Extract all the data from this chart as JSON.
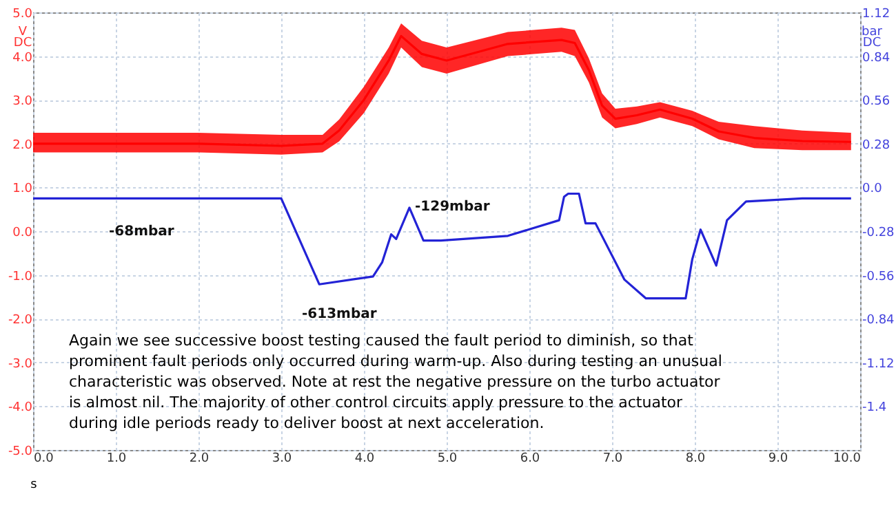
{
  "chart_data": {
    "type": "line",
    "xlabel": "s",
    "ylabel": "V DC",
    "y2label": "bar DC",
    "xlim": [
      0,
      10
    ],
    "ylim": [
      -5,
      5
    ],
    "y2lim": [
      -1.68,
      1.12
    ],
    "xticks": [
      {
        "value": 0,
        "label": "0.0"
      },
      {
        "value": 1,
        "label": "1.0"
      },
      {
        "value": 2,
        "label": "2.0"
      },
      {
        "value": 3,
        "label": "3.0"
      },
      {
        "value": 4,
        "label": "4.0"
      },
      {
        "value": 5,
        "label": "5.0"
      },
      {
        "value": 6,
        "label": "6.0"
      },
      {
        "value": 7,
        "label": "7.0"
      },
      {
        "value": 8,
        "label": "8.0"
      },
      {
        "value": 9,
        "label": "9.0"
      },
      {
        "value": 10,
        "label": "10.0"
      }
    ],
    "yticks": [
      {
        "value": -5,
        "label": "-5.0"
      },
      {
        "value": -4,
        "label": "-4.0"
      },
      {
        "value": -3,
        "label": "-3.0"
      },
      {
        "value": -2,
        "label": "-2.0"
      },
      {
        "value": -1,
        "label": "-1.0"
      },
      {
        "value": 0,
        "label": "0.0"
      },
      {
        "value": 1,
        "label": "1.0"
      },
      {
        "value": 2,
        "label": "2.0"
      },
      {
        "value": 3,
        "label": "3.0"
      },
      {
        "value": 4,
        "label": "4.0"
      },
      {
        "value": 5,
        "label": "5.0"
      }
    ],
    "y2ticks": [
      1.12,
      0.84,
      0.56,
      0.28,
      {
        "value": 0,
        "label": "0.0"
      },
      -0.28,
      -0.56,
      -0.84,
      -1.12,
      -1.4
    ],
    "grid": true,
    "marker": "none",
    "line_style": "solid",
    "series": [
      {
        "color": "#ff0000",
        "x": [
          0,
          1,
          2,
          3,
          3.5,
          3.7,
          4.0,
          4.3,
          4.45,
          4.7,
          5.0,
          5.74,
          6.39,
          6.55,
          6.72,
          6.88,
          7.04,
          7.3,
          7.58,
          7.97,
          8.29,
          8.72,
          9.3,
          9.89
        ],
        "values": [
          2.0,
          2.0,
          2.0,
          1.95,
          2.0,
          2.3,
          3.0,
          3.9,
          4.46,
          4.05,
          3.9,
          4.28,
          4.37,
          4.3,
          3.68,
          2.87,
          2.57,
          2.65,
          2.78,
          2.57,
          2.28,
          2.13,
          2.06,
          2.04
        ],
        "lower": [
          1.8,
          1.8,
          1.8,
          1.75,
          1.8,
          2.05,
          2.7,
          3.6,
          4.2,
          3.75,
          3.6,
          4.0,
          4.1,
          4.0,
          3.4,
          2.6,
          2.35,
          2.45,
          2.6,
          2.4,
          2.1,
          1.9,
          1.85,
          1.85
        ],
        "upper": [
          2.25,
          2.25,
          2.25,
          2.2,
          2.2,
          2.55,
          3.3,
          4.2,
          4.75,
          4.35,
          4.2,
          4.55,
          4.65,
          4.6,
          3.95,
          3.15,
          2.8,
          2.85,
          2.95,
          2.75,
          2.5,
          2.4,
          2.3,
          2.25
        ]
      },
      {
        "color": "#2323d6",
        "axis": "y2",
        "x": [
          0,
          1,
          2,
          3,
          3.46,
          4.11,
          4.22,
          4.33,
          4.39,
          4.55,
          4.72,
          4.93,
          5.74,
          6.36,
          6.42,
          6.47,
          6.6,
          6.68,
          6.8,
          7.15,
          7.41,
          7.89,
          7.97,
          8.07,
          8.26,
          8.39,
          8.62,
          9.3,
          9.89
        ],
        "values": [
          -0.07,
          -0.07,
          -0.07,
          -0.07,
          -0.62,
          -0.57,
          -0.48,
          -0.3,
          -0.33,
          -0.13,
          -0.34,
          -0.34,
          -0.31,
          -0.21,
          -0.06,
          -0.04,
          -0.04,
          -0.23,
          -0.23,
          -0.59,
          -0.71,
          -0.71,
          -0.46,
          -0.27,
          -0.5,
          -0.21,
          -0.09,
          -0.07,
          -0.07
        ]
      }
    ],
    "annotations": [
      "-68mbar",
      "-613mbar",
      "-129mbar",
      "Again we see successive boost testing caused the fault period to diminish, so that prominent fault periods only occurred during warm-up. Also during testing an unusual characteristic was observed. Note at rest the negative pressure on the turbo actuator is almost nil. The majority of other control circuits apply pressure to the actuator during idle periods ready to deliver boost at next acceleration."
    ]
  }
}
